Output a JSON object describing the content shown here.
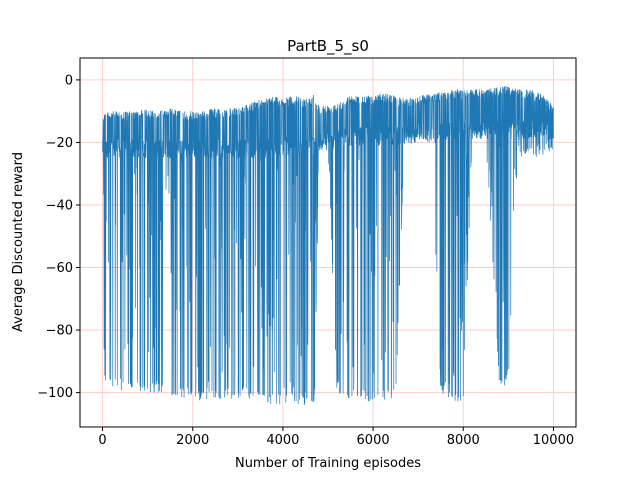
{
  "chart_data": {
    "type": "line",
    "title": "PartB_5_s0",
    "xlabel": "Number of Training episodes",
    "ylabel": "Average Discounted reward",
    "xlim": [
      -500,
      10500
    ],
    "ylim": [
      -111,
      7
    ],
    "xticks": [
      0,
      2000,
      4000,
      6000,
      8000,
      10000
    ],
    "yticks": [
      0,
      -20,
      -40,
      -60,
      -80,
      -100
    ],
    "grid": true,
    "grid_color": "#ffcccc",
    "line_color": "#1f77b4",
    "series": [
      {
        "envelope": {
          "x": [
            0,
            200,
            500,
            800,
            1000,
            1200,
            1500,
            1800,
            2000,
            2200,
            2500,
            2800,
            3000,
            3200,
            3500,
            3800,
            4000,
            4200,
            4500,
            4700,
            4800,
            5000,
            5200,
            5500,
            5800,
            6000,
            6200,
            6500,
            6700,
            7000,
            7300,
            7500,
            7800,
            8000,
            8200,
            8500,
            8800,
            9000,
            9200,
            9500,
            9800,
            10000
          ],
          "upper": [
            -10,
            -10,
            -10,
            -10,
            -9,
            -10,
            -9,
            -10,
            -10,
            -10,
            -9,
            -9,
            -9,
            -8,
            -6,
            -5,
            -6,
            -5,
            -6,
            -4,
            -8,
            -8,
            -7,
            -5,
            -5,
            -5,
            -4,
            -5,
            -6,
            -5,
            -4,
            -4,
            -3,
            -3,
            -3,
            -3,
            -2,
            -2,
            -3,
            -3,
            -5,
            -8
          ],
          "baseline": [
            -22,
            -22,
            -22,
            -22,
            -22,
            -22,
            -22,
            -22,
            -22,
            -22,
            -22,
            -22,
            -22,
            -22,
            -22,
            -22,
            -21,
            -21,
            -21,
            -21,
            -20,
            -20,
            -19,
            -18,
            -18,
            -18,
            -18,
            -18,
            -18,
            -17,
            -17,
            -17,
            -16,
            -16,
            -16,
            -16,
            -16,
            -16,
            -16,
            -16,
            -16,
            -20
          ],
          "lower": [
            -98,
            -98,
            -100,
            -100,
            -100,
            -100,
            -102,
            -102,
            -102,
            -103,
            -103,
            -102,
            -102,
            -102,
            -104,
            -104,
            -104,
            -104,
            -104,
            -104,
            -21,
            -21,
            -100,
            -102,
            -103,
            -103,
            -103,
            -103,
            -19,
            -19,
            -19,
            -100,
            -103,
            -103,
            -19,
            -19,
            -98,
            -98,
            -25,
            -25,
            -25,
            -22
          ]
        }
      }
    ]
  }
}
